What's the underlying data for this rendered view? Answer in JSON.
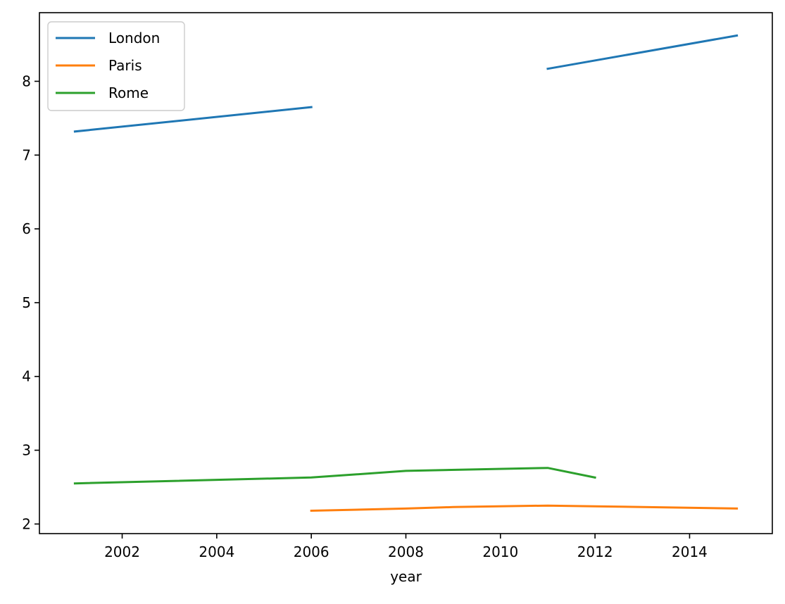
{
  "chart_data": {
    "type": "line",
    "title": "",
    "xlabel": "year",
    "ylabel": "",
    "xlim": [
      2000.25,
      2015.75
    ],
    "ylim": [
      1.87,
      8.93
    ],
    "x_ticks": [
      2002,
      2004,
      2006,
      2008,
      2010,
      2012,
      2014
    ],
    "y_ticks": [
      2,
      3,
      4,
      5,
      6,
      7,
      8
    ],
    "grid": false,
    "legend_position": "top-left",
    "series": [
      {
        "name": "London",
        "color": "#1f77b4",
        "segments": [
          [
            [
              2001,
              7.32
            ],
            [
              2006,
              7.65
            ]
          ],
          [
            [
              2011,
              8.17
            ],
            [
              2015,
              8.62
            ]
          ]
        ]
      },
      {
        "name": "Paris",
        "color": "#ff7f0e",
        "segments": [
          [
            [
              2006,
              2.18
            ],
            [
              2008,
              2.21
            ],
            [
              2009,
              2.23
            ],
            [
              2011,
              2.25
            ],
            [
              2012,
              2.24
            ],
            [
              2015,
              2.21
            ]
          ]
        ]
      },
      {
        "name": "Rome",
        "color": "#2ca02c",
        "segments": [
          [
            [
              2001,
              2.55
            ],
            [
              2006,
              2.63
            ],
            [
              2008,
              2.72
            ],
            [
              2011,
              2.76
            ],
            [
              2012,
              2.63
            ]
          ]
        ]
      }
    ]
  }
}
